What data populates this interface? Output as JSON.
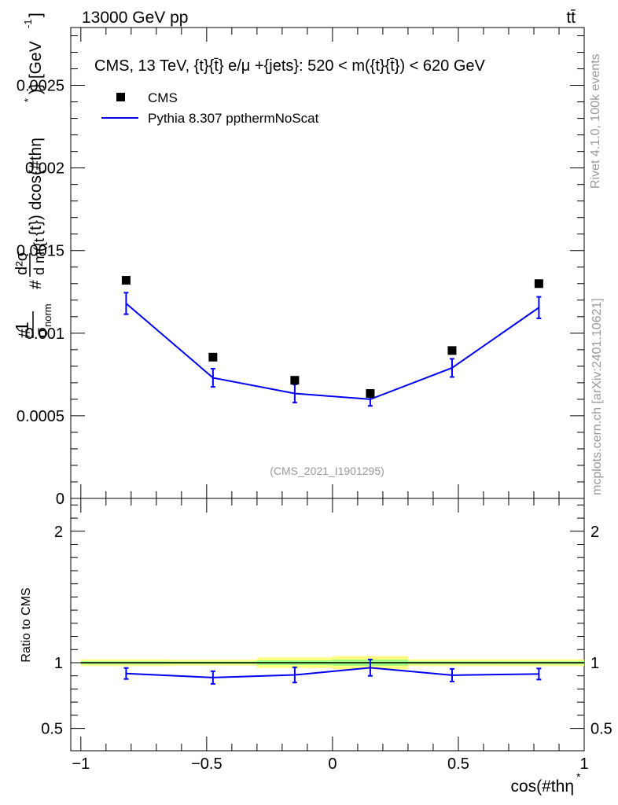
{
  "header": {
    "left": "13000 GeV pp",
    "right": "tt̄"
  },
  "side_labels": {
    "rivet": "Rivet 4.1.0,  100k events",
    "mcplots": "mcplots.cern.ch [arXiv:2401.10621]"
  },
  "chart_data": [
    {
      "panel": "main",
      "type": "scatter",
      "title": "CMS, 13 TeV, {t}{t̄} e/μ +{jets}: 520 < m({t}{t̄}) < 620 GeV",
      "watermark": "(CMS_2021_I1901295)",
      "ylabel_parts": [
        "#",
        "1",
        "σ",
        "norm",
        "#",
        "d²σ",
        "d m({t",
        "{t}) dcos(#thη",
        "*",
        ")} [GeV",
        "-1",
        "]"
      ],
      "xlim": [
        -1.04,
        1.0
      ],
      "ylim": [
        0,
        0.00285
      ],
      "yticks": [
        0,
        0.0005,
        0.001,
        0.0015,
        0.002,
        0.0025
      ],
      "ytick_labels": [
        "0",
        "0.0005",
        "0.001",
        "0.0015",
        "0.002",
        "0.0025"
      ],
      "legend": [
        {
          "label": "CMS",
          "marker": "square",
          "color": "#000000"
        },
        {
          "label": "Pythia 8.307 ppthermNoScat",
          "marker": "line",
          "color": "#0000ee"
        }
      ],
      "series": [
        {
          "name": "CMS",
          "color": "#000000",
          "x": [
            -0.82,
            -0.475,
            -0.15,
            0.15,
            0.475,
            0.82
          ],
          "y": [
            0.00132,
            0.000855,
            0.000715,
            0.000635,
            0.000895,
            0.0013
          ]
        },
        {
          "name": "Pythia 8.307 ppthermNoScat",
          "color": "#0000ee",
          "x": [
            -0.82,
            -0.475,
            -0.15,
            0.15,
            0.475,
            0.82
          ],
          "y": [
            0.00118,
            0.00073,
            0.000635,
            0.0006,
            0.00079,
            0.001155
          ],
          "err": [
            6.5e-05,
            5.5e-05,
            5.5e-05,
            4e-05,
            5.5e-05,
            6.5e-05
          ]
        }
      ]
    },
    {
      "panel": "ratio",
      "type": "line",
      "ylabel": "Ratio to CMS",
      "xlabel": "cos(#thη",
      "xlabel_sup": "*",
      "xlim": [
        -1.04,
        1.0
      ],
      "ylim": [
        0.33,
        2.25
      ],
      "yticks": [
        0.5,
        1,
        2
      ],
      "ytick_labels": [
        "0.5",
        "1",
        "2"
      ],
      "xticks": [
        -1,
        -0.5,
        0,
        0.5,
        1
      ],
      "xtick_labels": [
        "−1",
        "−0.5",
        "0",
        "0.5",
        "1"
      ],
      "reference_line": 1,
      "band_color_outer": "#ffff80",
      "band_color_inner": "#80ff80",
      "bins": [
        -1.0,
        -0.65,
        -0.3,
        0.0,
        0.3,
        0.65,
        1.0
      ],
      "band_halfwidth": [
        0.025,
        0.022,
        0.04,
        0.05,
        0.025,
        0.025
      ],
      "series": [
        {
          "name": "Pythia 8.307 ppthermNoScat",
          "color": "#0000ee",
          "x": [
            -0.82,
            -0.475,
            -0.15,
            0.15,
            0.475,
            0.82
          ],
          "y": [
            0.918,
            0.887,
            0.907,
            0.962,
            0.905,
            0.914
          ],
          "err": [
            0.042,
            0.048,
            0.058,
            0.062,
            0.048,
            0.042
          ]
        }
      ]
    }
  ]
}
